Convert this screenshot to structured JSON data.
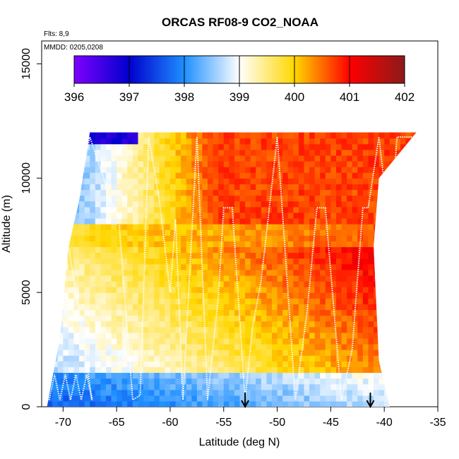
{
  "chart_data": {
    "type": "heatmap",
    "title": "ORCAS RF08-9 CO2_NOAA",
    "flights_note": "Flts: 8,9",
    "date_note": "MMDD: 0205,0208",
    "xlabel": "Latitude (deg N)",
    "ylabel": "Altitude (m)",
    "xlim": [
      -72,
      -35
    ],
    "ylim": [
      0,
      16000
    ],
    "x_ticks": [
      -70,
      -65,
      -60,
      -55,
      -50,
      -45,
      -40,
      -35
    ],
    "x_tick_labels": [
      "-70",
      "-65",
      "-60",
      "-55",
      "-50",
      "-45",
      "-40",
      "-35"
    ],
    "y_ticks": [
      0,
      5000,
      10000,
      15000
    ],
    "y_tick_labels": [
      "0",
      "5000",
      "10000",
      "15000"
    ],
    "colorbar": {
      "range": [
        396,
        402
      ],
      "ticks": [
        396,
        397,
        398,
        399,
        400,
        401,
        402
      ],
      "tick_labels": [
        "396",
        "397",
        "398",
        "399",
        "400",
        "401",
        "402"
      ],
      "colors": [
        "#7f00ff",
        "#0000cd",
        "#1e8fff",
        "#ffffff",
        "#ffd700",
        "#ff0000",
        "#8b1a1a"
      ]
    },
    "field": {
      "lat_range": [
        -71.5,
        -37
      ],
      "alt_range": [
        0,
        12000
      ],
      "south_edge": [
        [
          0,
          -71.5
        ],
        [
          3000,
          -70.3
        ],
        [
          7000,
          -69.5
        ],
        [
          9000,
          -68.5
        ],
        [
          12000,
          -67.5
        ]
      ],
      "north_edge": [
        [
          0,
          -39.5
        ],
        [
          2000,
          -40.5
        ],
        [
          7000,
          -41.0
        ],
        [
          10000,
          -40.5
        ],
        [
          12000,
          -37
        ]
      ],
      "low_band": {
        "min_value": 397.6,
        "top_alt": 1500
      },
      "mid_value_south": 399.4,
      "upper_south_value": 397.9,
      "upper_north_value": 400.7
    },
    "flight_track": [
      [
        -71.3,
        300
      ],
      [
        -70.8,
        1400
      ],
      [
        -70.3,
        300
      ],
      [
        -69.8,
        1400
      ],
      [
        -69.3,
        300
      ],
      [
        -68.8,
        1400
      ],
      [
        -68.3,
        300
      ],
      [
        -67.8,
        1400
      ],
      [
        -67.3,
        300
      ],
      [
        -68.5,
        4200
      ],
      [
        -69.5,
        7000
      ],
      [
        -67.5,
        11800
      ],
      [
        -65.5,
        9000
      ],
      [
        -64.8,
        8200
      ],
      [
        -63.5,
        300
      ],
      [
        -62.8,
        500
      ],
      [
        -62.0,
        11800
      ],
      [
        -61.0,
        9000
      ],
      [
        -60.0,
        5000
      ],
      [
        -59.5,
        8200
      ],
      [
        -58.8,
        300
      ],
      [
        -57.5,
        11800
      ],
      [
        -56.5,
        300
      ],
      [
        -55.5,
        4800
      ],
      [
        -55.0,
        8700
      ],
      [
        -54.2,
        8700
      ],
      [
        -53.0,
        300
      ],
      [
        -52.3,
        3500
      ],
      [
        -51.5,
        5500
      ],
      [
        -50.0,
        11800
      ],
      [
        -48.3,
        300
      ],
      [
        -47.2,
        4200
      ],
      [
        -46.3,
        8700
      ],
      [
        -45.5,
        8700
      ],
      [
        -44.0,
        300
      ],
      [
        -43.0,
        2500
      ],
      [
        -42.0,
        8700
      ],
      [
        -41.5,
        8700
      ],
      [
        -40.5,
        11800
      ],
      [
        -39.5,
        7700
      ],
      [
        -38.8,
        11800
      ],
      [
        -37.3,
        11800
      ]
    ],
    "markers": [
      {
        "lat": -53.0,
        "label": "down-arrow"
      },
      {
        "lat": -41.3,
        "label": "down-arrow"
      }
    ]
  }
}
